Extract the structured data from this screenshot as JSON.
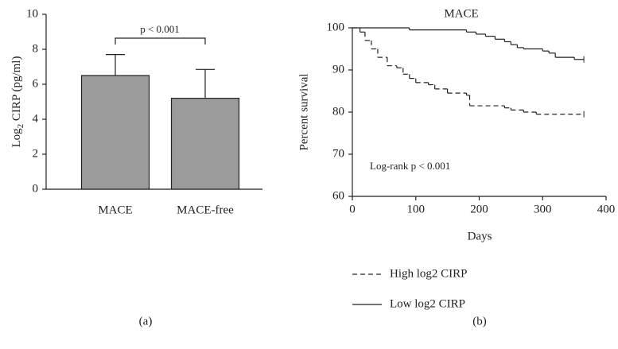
{
  "chart_data": [
    {
      "type": "bar",
      "ylabel": [
        "Log",
        "2",
        " CIRP (pg/ml)"
      ],
      "categories": [
        "MACE",
        "MACE-free"
      ],
      "values": [
        6.5,
        5.2
      ],
      "errors": [
        1.2,
        1.65
      ],
      "color": "#9b9b9b",
      "ylim": [
        0,
        10
      ],
      "yticks": [
        0,
        2,
        4,
        6,
        8,
        10
      ],
      "annotation": "p < 0.001",
      "panel_label": "(a)"
    },
    {
      "type": "step",
      "title": "MACE",
      "xlabel": "Days",
      "ylabel": "Percent survival",
      "xlim": [
        0,
        400
      ],
      "xticks": [
        0,
        100,
        200,
        300,
        400
      ],
      "ylim": [
        60,
        100
      ],
      "yticks": [
        60,
        70,
        80,
        90,
        100
      ],
      "annotation": "Log-rank p < 0.001",
      "panel_label": "(b)",
      "series": [
        {
          "name": "High log2 CIRP",
          "color": "#222222",
          "dashed": true,
          "x": [
            0,
            12,
            20,
            30,
            40,
            55,
            70,
            80,
            90,
            100,
            120,
            130,
            150,
            180,
            185,
            240,
            250,
            270,
            290,
            365
          ],
          "values": [
            100,
            99,
            97,
            95,
            93,
            91,
            90.5,
            89,
            88,
            87,
            86.5,
            85.5,
            84.5,
            84,
            81.5,
            81,
            80.5,
            80,
            79.5,
            79.5
          ]
        },
        {
          "name": "Low log2 CIRP",
          "color": "#222222",
          "dashed": false,
          "x": [
            0,
            90,
            180,
            195,
            210,
            225,
            240,
            250,
            260,
            270,
            300,
            310,
            320,
            350,
            365
          ],
          "values": [
            100,
            99.5,
            99,
            98.5,
            98,
            97.3,
            96.7,
            96,
            95.3,
            95,
            94.5,
            94,
            93,
            92.5,
            92.5
          ]
        }
      ]
    }
  ]
}
